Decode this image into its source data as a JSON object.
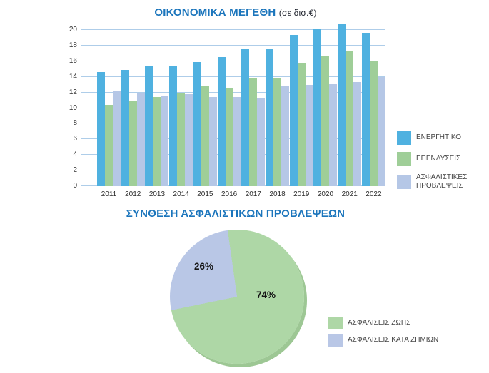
{
  "colors": {
    "title_blue": "#1B75BC",
    "axis_text": "#2B2B2B",
    "gridline": "#AECDE9",
    "legend_text": "#454545"
  },
  "chart_data": [
    {
      "type": "bar",
      "title": "ΟΙΚΟΝΟΜΙΚΑ ΜΕΓΕΘΗ",
      "title_unit": "(σε δισ.€)",
      "categories": [
        "2011",
        "2012",
        "2013",
        "2014",
        "2015",
        "2016",
        "2017",
        "2018",
        "2019",
        "2020",
        "2021",
        "2022"
      ],
      "series": [
        {
          "name": "ΕΝΕΡΓΗΤΙΚΟ",
          "color": "#4FB1E0",
          "values": [
            14.6,
            14.9,
            15.3,
            15.3,
            15.9,
            16.5,
            17.5,
            17.5,
            19.4,
            20.2,
            20.8,
            19.6
          ]
        },
        {
          "name": "ΕΠΕΝΔΥΣΕΙΣ",
          "color": "#9FCE98",
          "values": [
            10.4,
            11.0,
            11.4,
            12.0,
            12.8,
            12.6,
            13.8,
            13.8,
            15.8,
            16.6,
            17.3,
            16.0
          ]
        },
        {
          "name": "ΑΣΦΑΛΙΣΤΙΚΕΣ ΠΡΟΒΛΕΨΕΙΣ",
          "color": "#B5C7E6",
          "values": [
            12.2,
            12.0,
            11.5,
            11.8,
            11.4,
            11.4,
            11.3,
            12.9,
            13.0,
            13.1,
            13.3,
            14.0
          ]
        }
      ],
      "ylim": [
        0,
        20
      ],
      "ytick_step": 2,
      "grid": true,
      "legend_position": "right"
    },
    {
      "type": "pie",
      "title": "ΣΥΝΘΕΣΗ ΑΣΦΑΛΙΣΤΙΚΩΝ ΠΡΟΒΛΕΨΕΩΝ",
      "rotation_deg": -8,
      "shadow_color": "#9DC794",
      "slices": [
        {
          "label": "ΑΣΦΑΛΙΣΕΙΣ ΖΩΗΣ",
          "value": 74,
          "pct_label": "74%",
          "color": "#AED7A6"
        },
        {
          "label": "ΑΣΦΑΛΙΣΕΙΣ ΚΑΤΑ ΖΗΜΙΩΝ",
          "value": 26,
          "pct_label": "26%",
          "color": "#B9C7E6"
        }
      ],
      "legend_position": "bottom-right"
    }
  ]
}
